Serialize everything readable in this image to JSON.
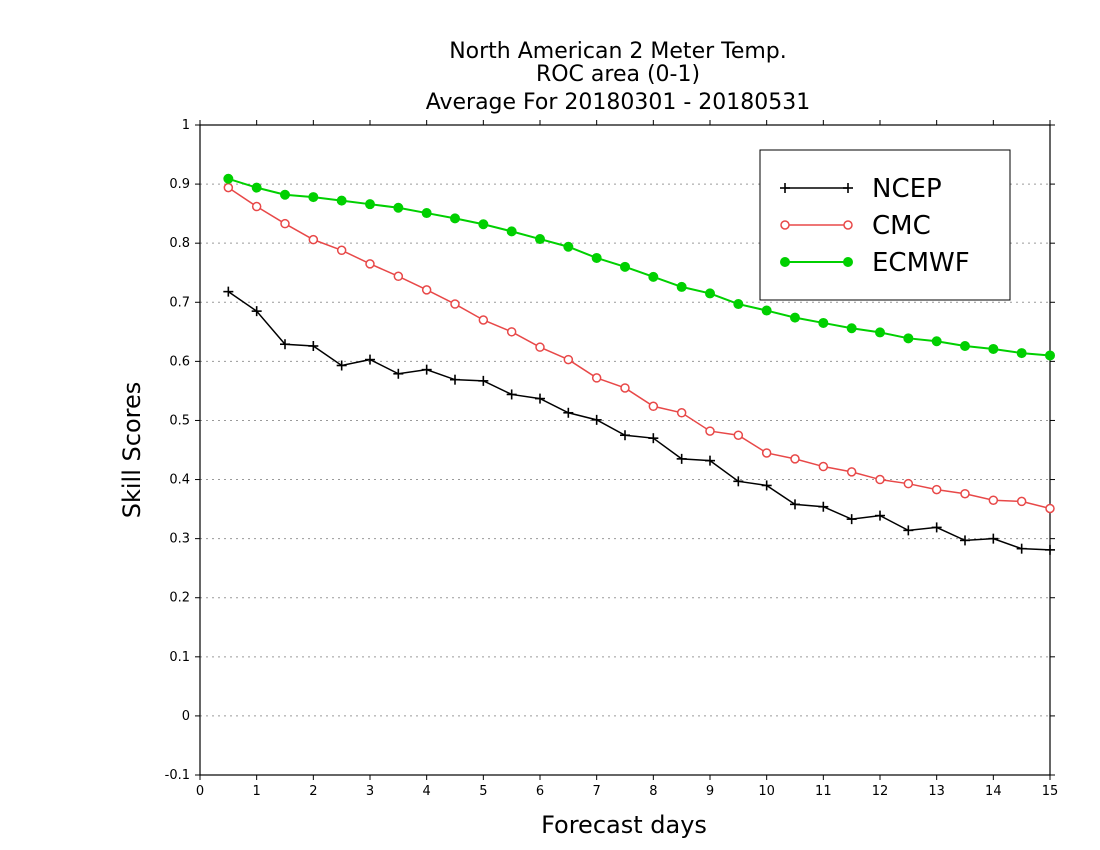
{
  "chart_data": {
    "type": "line",
    "title_lines": [
      "North American 2 Meter Temp.",
      "ROC area (0-1)",
      "Average For 20180301 - 20180531"
    ],
    "xlabel": "Forecast days",
    "ylabel": "Skill Scores",
    "xlim": [
      0,
      15
    ],
    "ylim": [
      -0.1,
      1
    ],
    "x_ticks": [
      "0",
      "1",
      "2",
      "3",
      "4",
      "5",
      "6",
      "7",
      "8",
      "9",
      "10",
      "11",
      "12",
      "13",
      "14",
      "15"
    ],
    "y_ticks": [
      "-0.1",
      "0",
      "0.1",
      "0.2",
      "0.3",
      "0.4",
      "0.5",
      "0.6",
      "0.7",
      "0.8",
      "0.9",
      "1"
    ],
    "grid": "horizontal dotted",
    "legend_position": "top-right",
    "x": [
      0.5,
      1,
      1.5,
      2,
      2.5,
      3,
      3.5,
      4,
      4.5,
      5,
      5.5,
      6,
      6.5,
      7,
      7.5,
      8,
      8.5,
      9,
      9.5,
      10,
      10.5,
      11,
      11.5,
      12,
      12.5,
      13,
      13.5,
      14,
      14.5,
      15
    ],
    "series": [
      {
        "name": "NCEP",
        "color": "#000000",
        "marker": "plus",
        "values": [
          0.718,
          0.685,
          0.629,
          0.626,
          0.593,
          0.603,
          0.579,
          0.586,
          0.569,
          0.567,
          0.544,
          0.537,
          0.513,
          0.501,
          0.475,
          0.47,
          0.435,
          0.432,
          0.397,
          0.39,
          0.358,
          0.354,
          0.333,
          0.339,
          0.314,
          0.319,
          0.297,
          0.3,
          0.283,
          0.281
        ]
      },
      {
        "name": "CMC",
        "color": "#e84848",
        "marker": "open-circle",
        "values": [
          0.894,
          0.862,
          0.833,
          0.806,
          0.788,
          0.765,
          0.744,
          0.721,
          0.697,
          0.67,
          0.65,
          0.624,
          0.603,
          0.572,
          0.555,
          0.524,
          0.513,
          0.482,
          0.475,
          0.445,
          0.435,
          0.422,
          0.413,
          0.4,
          0.393,
          0.383,
          0.376,
          0.365,
          0.363,
          0.351
        ]
      },
      {
        "name": "ECMWF",
        "color": "#00d000",
        "marker": "filled-circle",
        "values": [
          0.909,
          0.894,
          0.882,
          0.878,
          0.872,
          0.866,
          0.86,
          0.851,
          0.842,
          0.832,
          0.82,
          0.807,
          0.794,
          0.775,
          0.76,
          0.743,
          0.726,
          0.715,
          0.697,
          0.686,
          0.674,
          0.665,
          0.656,
          0.649,
          0.639,
          0.634,
          0.626,
          0.621,
          0.614,
          0.61
        ]
      }
    ]
  }
}
